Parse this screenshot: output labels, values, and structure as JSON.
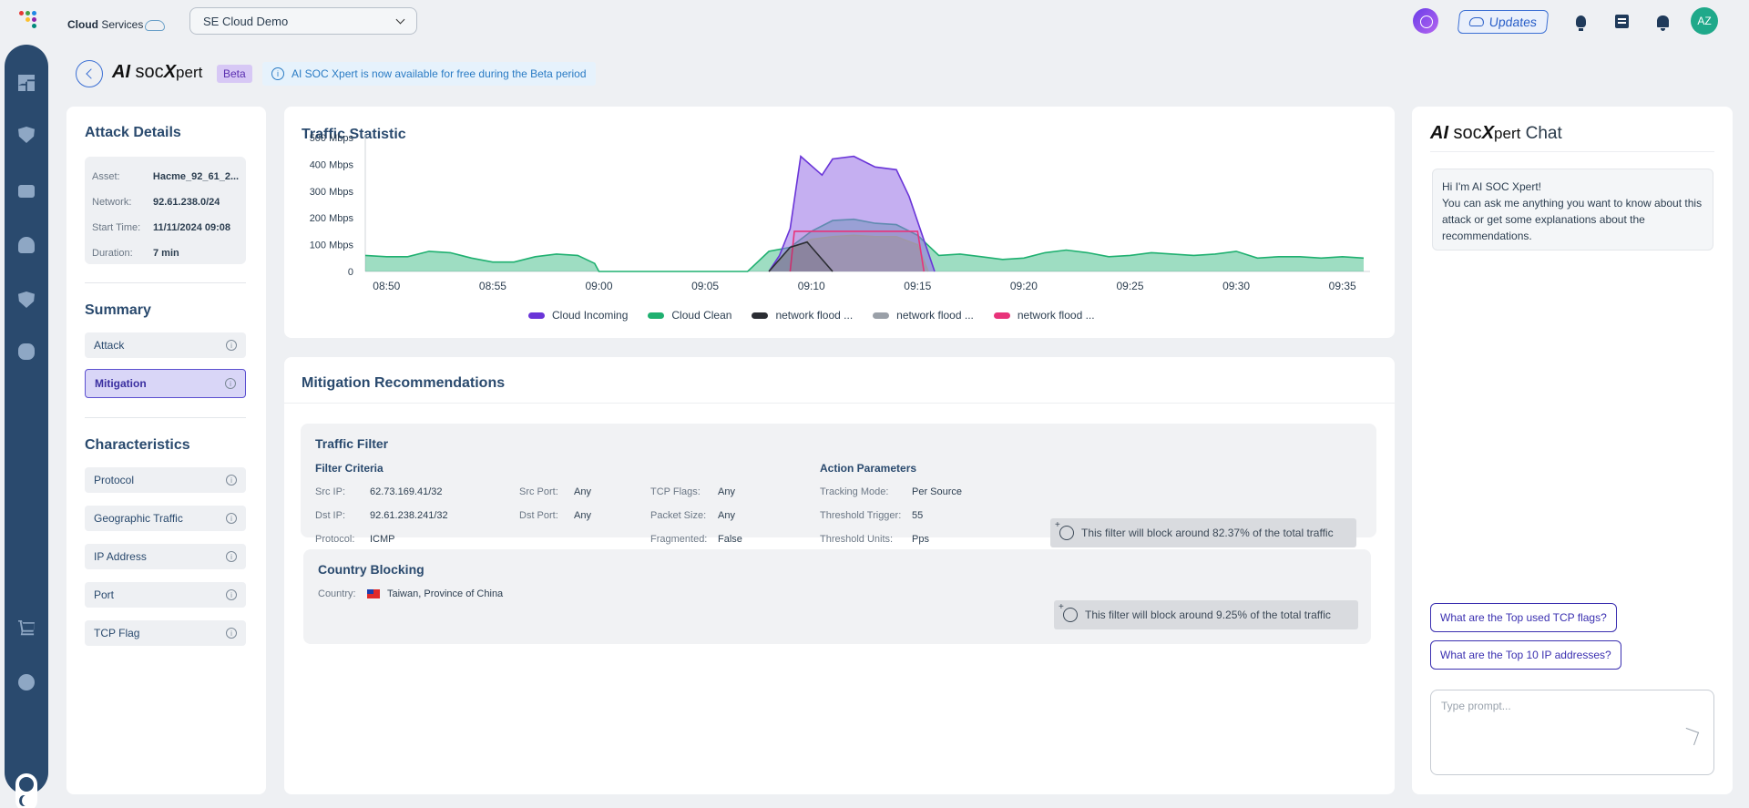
{
  "app": {
    "brand_bold": "Cloud",
    "brand_rest": " Services",
    "org_select": "SE Cloud Demo",
    "updates_label": "Updates",
    "avatar_initials": "AZ"
  },
  "page": {
    "product_ai": "AI",
    "product_soc": " soc",
    "product_x": "X",
    "product_pert": "pert",
    "beta_label": "Beta",
    "banner_text": "AI SOC Xpert is now available for free during the Beta period"
  },
  "attack_details": {
    "title": "Attack Details",
    "rows": [
      {
        "key": "Asset:",
        "value": "Hacme_92_61_2..."
      },
      {
        "key": "Network:",
        "value": "92.61.238.0/24"
      },
      {
        "key": "Start Time:",
        "value": "11/11/2024 09:08"
      },
      {
        "key": "Duration:",
        "value": "7 min"
      }
    ]
  },
  "summary": {
    "title": "Summary",
    "items": [
      {
        "label": "Attack",
        "active": false
      },
      {
        "label": "Mitigation",
        "active": true
      }
    ]
  },
  "characteristics": {
    "title": "Characteristics",
    "items": [
      "Protocol",
      "Geographic Traffic",
      "IP Address",
      "Port",
      "TCP Flag"
    ]
  },
  "chart_data": {
    "type": "area",
    "title": "Traffic Statistic",
    "y_ticks": [
      "500 Mbps",
      "400 Mbps",
      "300 Mbps",
      "200 Mbps",
      "100 Mbps",
      "0"
    ],
    "ylim": [
      0,
      500
    ],
    "x_ticks": [
      "08:50",
      "08:55",
      "09:00",
      "09:05",
      "09:10",
      "09:15",
      "09:20",
      "09:25",
      "09:30",
      "09:35"
    ],
    "x_minutes": [
      -10,
      -5,
      0,
      5,
      10,
      15,
      20,
      25,
      30,
      35
    ],
    "xlim": [
      -11,
      36.3
    ],
    "series": [
      {
        "name": "Cloud Incoming",
        "color": "#6a35d8",
        "points": [
          [
            8.0,
            0
          ],
          [
            8.5,
            60
          ],
          [
            9.0,
            160
          ],
          [
            9.5,
            430
          ],
          [
            10.5,
            360
          ],
          [
            11.0,
            420
          ],
          [
            12.0,
            430
          ],
          [
            13.0,
            390
          ],
          [
            14.0,
            380
          ],
          [
            14.6,
            280
          ],
          [
            15.8,
            0
          ]
        ]
      },
      {
        "name": "Cloud Clean",
        "color": "#1fb070",
        "points": [
          [
            -11,
            60
          ],
          [
            -10,
            55
          ],
          [
            -9,
            55
          ],
          [
            -8,
            75
          ],
          [
            -7,
            70
          ],
          [
            -6,
            50
          ],
          [
            -5,
            35
          ],
          [
            -4,
            35
          ],
          [
            -3,
            55
          ],
          [
            -2,
            65
          ],
          [
            -1,
            60
          ],
          [
            -0.2,
            30
          ],
          [
            0,
            0
          ],
          [
            7.0,
            0
          ],
          [
            7.2,
            15
          ],
          [
            8,
            75
          ],
          [
            9,
            90
          ],
          [
            10,
            150
          ],
          [
            11,
            190
          ],
          [
            12,
            195
          ],
          [
            13,
            180
          ],
          [
            14,
            175
          ],
          [
            15,
            135
          ],
          [
            16,
            60
          ],
          [
            17,
            65
          ],
          [
            18,
            55
          ],
          [
            19,
            45
          ],
          [
            20,
            50
          ],
          [
            21,
            70
          ],
          [
            22,
            80
          ],
          [
            23,
            70
          ],
          [
            24,
            55
          ],
          [
            25,
            60
          ],
          [
            26,
            70
          ],
          [
            27,
            65
          ],
          [
            28,
            60
          ],
          [
            29,
            65
          ],
          [
            30,
            75
          ],
          [
            31,
            50
          ],
          [
            32,
            55
          ],
          [
            33,
            55
          ],
          [
            34,
            50
          ],
          [
            35,
            55
          ],
          [
            36,
            50
          ]
        ]
      },
      {
        "name": "network flood ...",
        "color": "#2b2d33",
        "points": [
          [
            8.0,
            0
          ],
          [
            9.0,
            90
          ],
          [
            9.8,
            110
          ],
          [
            11.0,
            0
          ]
        ]
      },
      {
        "name": "network flood ...",
        "color": "#9aa0a8",
        "points": [
          [
            8.0,
            0
          ],
          [
            9.0,
            80
          ],
          [
            10,
            120
          ],
          [
            11,
            130
          ],
          [
            12,
            135
          ],
          [
            13,
            130
          ],
          [
            14,
            130
          ],
          [
            15,
            100
          ],
          [
            15.5,
            0
          ]
        ]
      },
      {
        "name": "network flood ...",
        "color": "#e8337a",
        "points": [
          [
            9.0,
            0
          ],
          [
            9.2,
            150
          ],
          [
            10,
            150
          ],
          [
            11,
            150
          ],
          [
            12,
            150
          ],
          [
            13,
            150
          ],
          [
            14,
            150
          ],
          [
            15,
            150
          ],
          [
            15.3,
            0
          ]
        ]
      }
    ]
  },
  "mitigation": {
    "title": "Mitigation Recommendations",
    "traffic_filter": {
      "title": "Traffic Filter",
      "criteria_title": "Filter Criteria",
      "action_title": "Action Parameters",
      "src_ip_k": "Src IP:",
      "src_ip_v": "62.73.169.41/32",
      "dst_ip_k": "Dst IP:",
      "dst_ip_v": "92.61.238.241/32",
      "protocol_k": "Protocol:",
      "protocol_v": "ICMP",
      "src_port_k": "Src Port:",
      "src_port_v": "Any",
      "dst_port_k": "Dst Port:",
      "dst_port_v": "Any",
      "tcp_flags_k": "TCP Flags:",
      "tcp_flags_v": "Any",
      "packet_size_k": "Packet Size:",
      "packet_size_v": "Any",
      "fragmented_k": "Fragmented:",
      "fragmented_v": "False",
      "tracking_k": "Tracking Mode:",
      "tracking_v": "Per Source",
      "trigger_k": "Threshold Trigger:",
      "trigger_v": "55",
      "units_k": "Threshold Units:",
      "units_v": "Pps",
      "note": "This filter will block around 82.37% of the total traffic"
    },
    "country_blocking": {
      "title": "Country Blocking",
      "country_k": "Country:",
      "country_v": "Taiwan, Province of China",
      "note": "This filter will block around 9.25% of the total traffic"
    }
  },
  "chat": {
    "title_ai": "AI",
    "title_soc": " soc",
    "title_x": "X",
    "title_pert": "pert",
    "title_chat": " Chat",
    "greeting_line1": "Hi I'm AI SOC Xpert!",
    "greeting_line2": "You can ask me anything you want to know about this attack or get some explanations about the recommendations.",
    "suggestions": [
      "What are the Top used TCP flags?",
      "What are the Top 10 IP addresses?"
    ],
    "prompt_placeholder": "Type prompt..."
  }
}
